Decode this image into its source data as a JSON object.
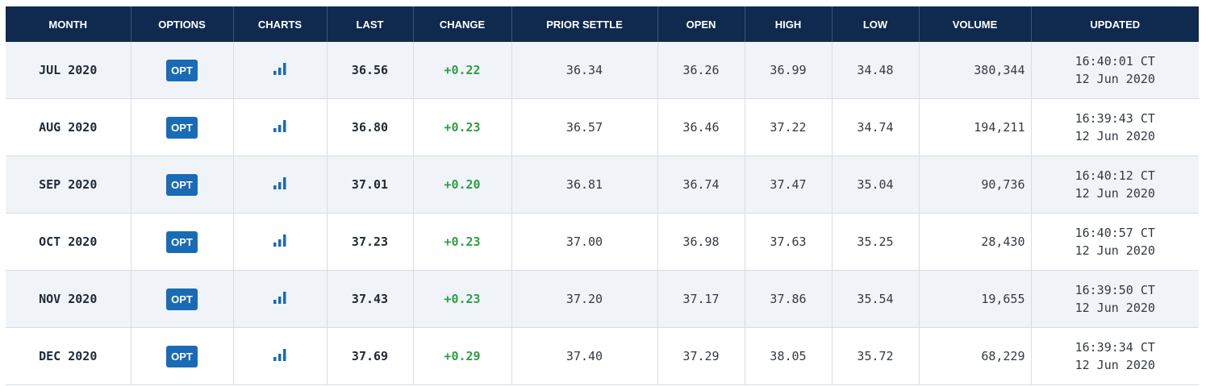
{
  "headers": [
    "MONTH",
    "OPTIONS",
    "CHARTS",
    "LAST",
    "CHANGE",
    "PRIOR SETTLE",
    "OPEN",
    "HIGH",
    "LOW",
    "VOLUME",
    "UPDATED"
  ],
  "option_label": "OPT",
  "accent_color": "#1a6bb5",
  "header_color": "#0f2a4e",
  "change_color": "#2f9e44",
  "chart_icon": "bar-chart-icon",
  "rows": [
    {
      "month": "JUL 2020",
      "last": "36.56",
      "change": "+0.22",
      "prior_settle": "36.34",
      "open": "36.26",
      "high": "36.99",
      "low": "34.48",
      "volume": "380,344",
      "time": "16:40:01 CT",
      "date": "12 Jun 2020"
    },
    {
      "month": "AUG 2020",
      "last": "36.80",
      "change": "+0.23",
      "prior_settle": "36.57",
      "open": "36.46",
      "high": "37.22",
      "low": "34.74",
      "volume": "194,211",
      "time": "16:39:43 CT",
      "date": "12 Jun 2020"
    },
    {
      "month": "SEP 2020",
      "last": "37.01",
      "change": "+0.20",
      "prior_settle": "36.81",
      "open": "36.74",
      "high": "37.47",
      "low": "35.04",
      "volume": "90,736",
      "time": "16:40:12 CT",
      "date": "12 Jun 2020"
    },
    {
      "month": "OCT 2020",
      "last": "37.23",
      "change": "+0.23",
      "prior_settle": "37.00",
      "open": "36.98",
      "high": "37.63",
      "low": "35.25",
      "volume": "28,430",
      "time": "16:40:57 CT",
      "date": "12 Jun 2020"
    },
    {
      "month": "NOV 2020",
      "last": "37.43",
      "change": "+0.23",
      "prior_settle": "37.20",
      "open": "37.17",
      "high": "37.86",
      "low": "35.54",
      "volume": "19,655",
      "time": "16:39:50 CT",
      "date": "12 Jun 2020"
    },
    {
      "month": "DEC 2020",
      "last": "37.69",
      "change": "+0.29",
      "prior_settle": "37.40",
      "open": "37.29",
      "high": "38.05",
      "low": "35.72",
      "volume": "68,229",
      "time": "16:39:34 CT",
      "date": "12 Jun 2020"
    }
  ]
}
